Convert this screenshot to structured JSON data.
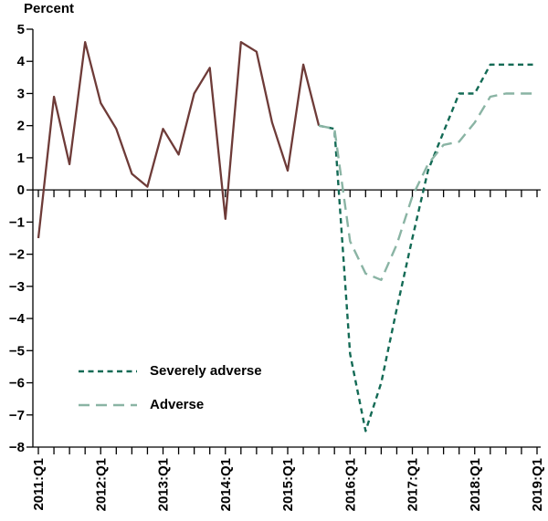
{
  "chart_data": {
    "type": "line",
    "ylabel": "Percent",
    "ylim": [
      -8,
      5
    ],
    "yticks": [
      5,
      4,
      3,
      2,
      1,
      0,
      -1,
      -2,
      -3,
      -4,
      -5,
      -6,
      -7,
      -8
    ],
    "grid": false,
    "legend_position": "inside-lower-left",
    "x_unit": "quarter",
    "n_quarters": 33,
    "x_start": "2011:Q1",
    "x_end": "2019:Q1",
    "x_tick_labels": [
      "2011:Q1",
      "2012:Q1",
      "2013:Q1",
      "2014:Q1",
      "2015:Q1",
      "2016:Q1",
      "2017:Q1",
      "2018:Q1",
      "2019:Q1"
    ],
    "x_tick_positions": [
      0,
      4,
      8,
      12,
      16,
      20,
      24,
      28,
      32
    ],
    "axis_color": "#000000",
    "series": [
      {
        "key": "history",
        "line_style": "solid",
        "color": "#6e3b38",
        "dash": null,
        "width": 2.3,
        "start_index": 0,
        "values": [
          -1.5,
          2.9,
          0.8,
          4.6,
          2.7,
          1.9,
          0.5,
          0.1,
          1.9,
          1.1,
          3.0,
          3.8,
          -0.9,
          4.6,
          4.3,
          2.1,
          0.6,
          3.9,
          2.0
        ]
      },
      {
        "key": "severely_adverse",
        "name": "Severely adverse",
        "line_style": "dashed",
        "color": "#136a55",
        "dash": "6 4.5",
        "width": 2.4,
        "start_index": 18,
        "values": [
          2.0,
          1.9,
          -5.1,
          -7.5,
          -6.0,
          -3.7,
          -1.5,
          0.6,
          1.8,
          3.0,
          3.0,
          3.9,
          3.9,
          3.9,
          3.9
        ]
      },
      {
        "key": "adverse",
        "name": "Adverse",
        "line_style": "dashed",
        "color": "#8ab4a4",
        "dash": "12 7",
        "width": 2.4,
        "start_index": 18,
        "values": [
          2.0,
          1.9,
          -1.6,
          -2.6,
          -2.8,
          -1.7,
          -0.2,
          0.8,
          1.4,
          1.5,
          2.1,
          2.9,
          3.0,
          3.0,
          3.0
        ]
      }
    ]
  }
}
